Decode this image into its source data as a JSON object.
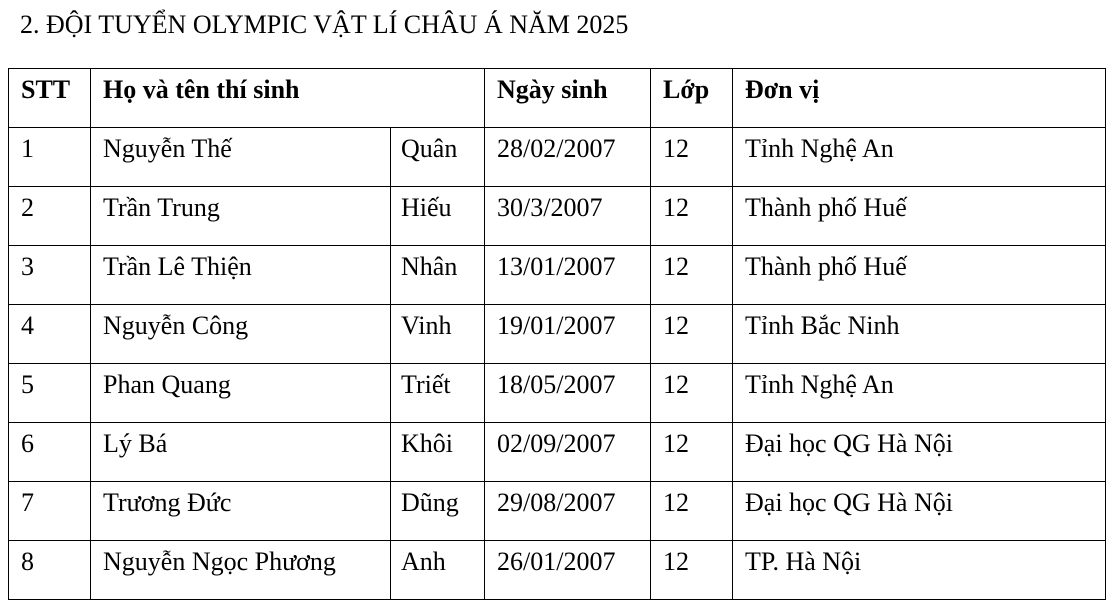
{
  "title": "2. ĐỘI TUYỂN OLYMPIC VẬT LÍ CHÂU Á NĂM 2025",
  "table": {
    "header": [
      "STT",
      "Họ và tên thí sinh",
      "Ngày sinh",
      "Lớp",
      "Đơn vị"
    ],
    "rows": [
      [
        "1",
        "Nguyễn Thế",
        "Quân",
        "28/02/2007",
        "12",
        "Tỉnh Nghệ An"
      ],
      [
        "2",
        "Trần Trung",
        "Hiếu",
        "30/3/2007",
        "12",
        "Thành phố Huế"
      ],
      [
        "3",
        "Trần Lê Thiện",
        "Nhân",
        "13/01/2007",
        "12",
        "Thành phố Huế"
      ],
      [
        "4",
        "Nguyễn Công",
        "Vinh",
        "19/01/2007",
        "12",
        "Tỉnh Bắc Ninh"
      ],
      [
        "5",
        "Phan Quang",
        "Triết",
        "18/05/2007",
        "12",
        "Tỉnh Nghệ An"
      ],
      [
        "6",
        "Lý Bá",
        "Khôi",
        "02/09/2007",
        "12",
        "Đại học QG Hà Nội"
      ],
      [
        "7",
        "Trương Đức",
        "Dũng",
        "29/08/2007",
        "12",
        "Đại học QG Hà Nội"
      ],
      [
        "8",
        "Nguyễn Ngọc Phương",
        "Anh",
        "26/01/2007",
        "12",
        "TP. Hà Nội"
      ]
    ]
  }
}
